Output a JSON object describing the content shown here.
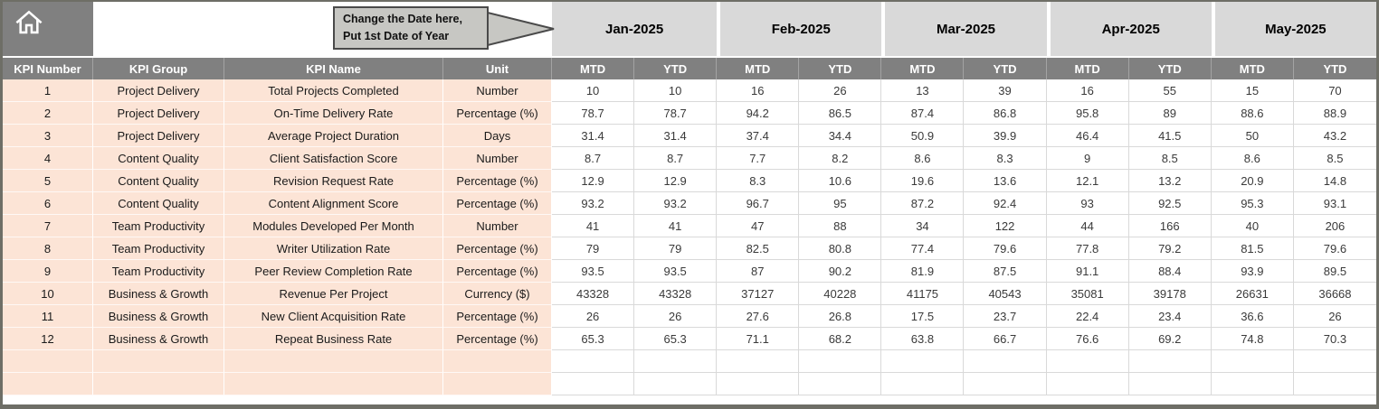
{
  "callout": {
    "line1": "Change the Date here,",
    "line2": "Put 1st Date of Year"
  },
  "months": [
    {
      "label": "Jan-2025"
    },
    {
      "label": "Feb-2025"
    },
    {
      "label": "Mar-2025"
    },
    {
      "label": "Apr-2025"
    },
    {
      "label": "May-2025"
    }
  ],
  "columns": {
    "kpi_number": "KPI Number",
    "kpi_group": "KPI Group",
    "kpi_name": "KPI Name",
    "unit": "Unit",
    "mtd": "MTD",
    "ytd": "YTD"
  },
  "rows": [
    {
      "number": "1",
      "group": "Project Delivery",
      "name": "Total Projects Completed",
      "unit": "Number",
      "values": [
        "10",
        "10",
        "16",
        "26",
        "13",
        "39",
        "16",
        "55",
        "15",
        "70"
      ]
    },
    {
      "number": "2",
      "group": "Project Delivery",
      "name": "On-Time Delivery Rate",
      "unit": "Percentage (%)",
      "values": [
        "78.7",
        "78.7",
        "94.2",
        "86.5",
        "87.4",
        "86.8",
        "95.8",
        "89",
        "88.6",
        "88.9"
      ]
    },
    {
      "number": "3",
      "group": "Project Delivery",
      "name": "Average Project Duration",
      "unit": "Days",
      "values": [
        "31.4",
        "31.4",
        "37.4",
        "34.4",
        "50.9",
        "39.9",
        "46.4",
        "41.5",
        "50",
        "43.2"
      ]
    },
    {
      "number": "4",
      "group": "Content Quality",
      "name": "Client Satisfaction Score",
      "unit": "Number",
      "values": [
        "8.7",
        "8.7",
        "7.7",
        "8.2",
        "8.6",
        "8.3",
        "9",
        "8.5",
        "8.6",
        "8.5"
      ]
    },
    {
      "number": "5",
      "group": "Content Quality",
      "name": "Revision Request Rate",
      "unit": "Percentage (%)",
      "values": [
        "12.9",
        "12.9",
        "8.3",
        "10.6",
        "19.6",
        "13.6",
        "12.1",
        "13.2",
        "20.9",
        "14.8"
      ]
    },
    {
      "number": "6",
      "group": "Content Quality",
      "name": "Content Alignment Score",
      "unit": "Percentage (%)",
      "values": [
        "93.2",
        "93.2",
        "96.7",
        "95",
        "87.2",
        "92.4",
        "93",
        "92.5",
        "95.3",
        "93.1"
      ]
    },
    {
      "number": "7",
      "group": "Team Productivity",
      "name": "Modules Developed Per Month",
      "unit": "Number",
      "values": [
        "41",
        "41",
        "47",
        "88",
        "34",
        "122",
        "44",
        "166",
        "40",
        "206"
      ]
    },
    {
      "number": "8",
      "group": "Team Productivity",
      "name": "Writer Utilization Rate",
      "unit": "Percentage (%)",
      "values": [
        "79",
        "79",
        "82.5",
        "80.8",
        "77.4",
        "79.6",
        "77.8",
        "79.2",
        "81.5",
        "79.6"
      ]
    },
    {
      "number": "9",
      "group": "Team Productivity",
      "name": "Peer Review Completion Rate",
      "unit": "Percentage (%)",
      "values": [
        "93.5",
        "93.5",
        "87",
        "90.2",
        "81.9",
        "87.5",
        "91.1",
        "88.4",
        "93.9",
        "89.5"
      ]
    },
    {
      "number": "10",
      "group": "Business & Growth",
      "name": "Revenue Per Project",
      "unit": "Currency ($)",
      "values": [
        "43328",
        "43328",
        "37127",
        "40228",
        "41175",
        "40543",
        "35081",
        "39178",
        "26631",
        "36668"
      ]
    },
    {
      "number": "11",
      "group": "Business & Growth",
      "name": "New Client Acquisition Rate",
      "unit": "Percentage (%)",
      "values": [
        "26",
        "26",
        "27.6",
        "26.8",
        "17.5",
        "23.7",
        "22.4",
        "23.4",
        "36.6",
        "26"
      ]
    },
    {
      "number": "12",
      "group": "Business & Growth",
      "name": "Repeat Business Rate",
      "unit": "Percentage (%)",
      "values": [
        "65.3",
        "65.3",
        "71.1",
        "68.2",
        "63.8",
        "66.7",
        "76.6",
        "69.2",
        "74.8",
        "70.3"
      ]
    }
  ],
  "empty_rows": 2,
  "colors": {
    "header_dark": "#808080",
    "month_header": "#d9d9d9",
    "row_left_fill": "#fce4d6",
    "frame": "#6e6e66",
    "callout_fill": "#c7c7c3",
    "callout_border": "#4a4a4a"
  }
}
